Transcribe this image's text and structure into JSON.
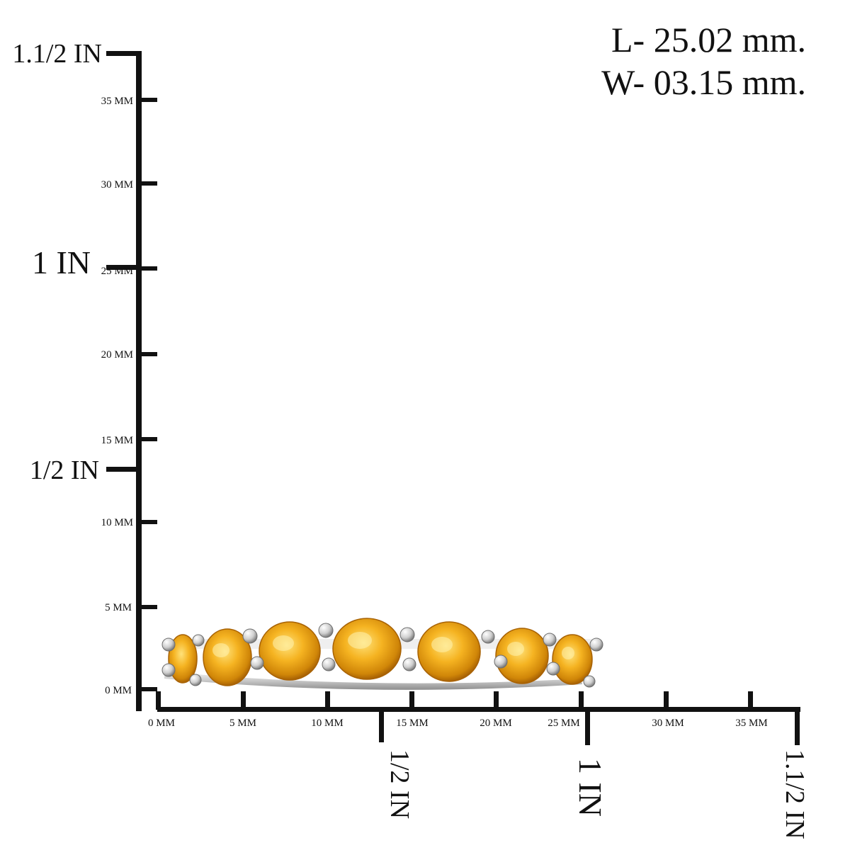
{
  "dimensions": {
    "length": "L- 25.02 mm.",
    "width": "W- 03.15 mm."
  },
  "vertical_ruler": {
    "mm_labels": [
      "0 MM",
      "5 MM",
      "10 MM",
      "15 MM",
      "20 MM",
      "25 MM",
      "30 MM",
      "35 MM"
    ],
    "inch_labels": [
      "1/2 IN",
      "1 IN",
      "1.1/2 IN"
    ]
  },
  "horizontal_ruler": {
    "mm_labels": [
      "0 MM",
      "5 MM",
      "10 MM",
      "15 MM",
      "20 MM",
      "25 MM",
      "30 MM",
      "35 MM"
    ],
    "inch_labels": [
      "1/2 IN",
      "1 IN",
      "1.1/2 IN"
    ]
  },
  "colors": {
    "ruler": "#111111",
    "stone": "#f2a817",
    "stone_dark": "#c87a05",
    "metal": "#d9d9d9"
  }
}
